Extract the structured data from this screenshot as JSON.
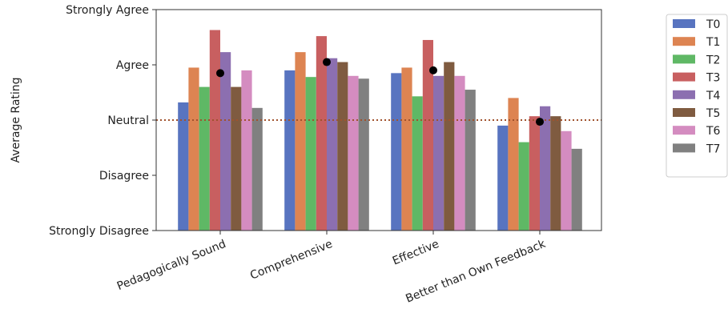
{
  "chart_data": {
    "type": "bar",
    "ylabel": "Average Rating",
    "xlabel": "",
    "categories": [
      "Pedagogically Sound",
      "Comprehensive",
      "Effective",
      "Better than Own Feedback"
    ],
    "ylim": [
      1,
      5
    ],
    "yticks": [
      {
        "value": 5,
        "label": "Strongly Agree"
      },
      {
        "value": 4,
        "label": "Agree"
      },
      {
        "value": 3,
        "label": "Neutral"
      },
      {
        "value": 2,
        "label": "Disagree"
      },
      {
        "value": 1,
        "label": "Strongly Disagree"
      }
    ],
    "reference_line": {
      "value": 3,
      "style": "dotted",
      "color": "#a0522d"
    },
    "series": [
      {
        "name": "T0",
        "color": "#5874c0",
        "values": [
          3.32,
          3.9,
          3.85,
          2.9
        ]
      },
      {
        "name": "T1",
        "color": "#dd8452",
        "values": [
          3.95,
          4.23,
          3.95,
          3.4
        ]
      },
      {
        "name": "T2",
        "color": "#5fb865",
        "values": [
          3.6,
          3.78,
          3.43,
          2.6
        ]
      },
      {
        "name": "T3",
        "color": "#c85f60",
        "values": [
          4.63,
          4.52,
          4.45,
          3.07
        ]
      },
      {
        "name": "T4",
        "color": "#8c6fb0",
        "values": [
          4.23,
          4.12,
          3.8,
          3.25
        ]
      },
      {
        "name": "T5",
        "color": "#7f5b40",
        "values": [
          3.6,
          4.05,
          4.05,
          3.07
        ]
      },
      {
        "name": "T6",
        "color": "#d48cc0",
        "values": [
          3.9,
          3.8,
          3.8,
          2.8
        ]
      },
      {
        "name": "T7",
        "color": "#808080",
        "values": [
          3.22,
          3.75,
          3.55,
          2.48
        ]
      }
    ],
    "mean_points": {
      "color": "#000000",
      "values": [
        3.85,
        4.05,
        3.9,
        2.97
      ]
    },
    "legend": {
      "placement": "outside-right"
    },
    "grid": false
  }
}
